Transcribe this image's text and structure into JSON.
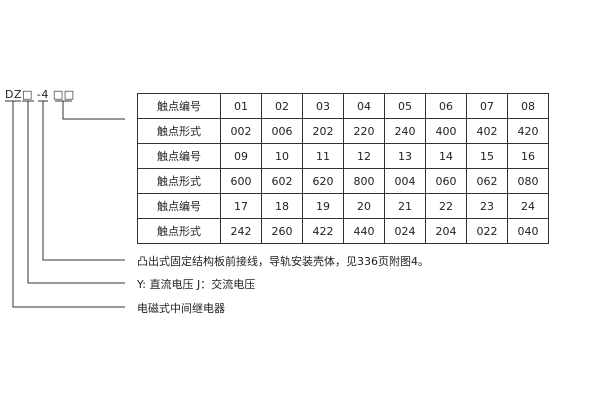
{
  "model_code": "DZ□ -4 □□",
  "table": {
    "rows": [
      {
        "label": "触点编号",
        "values": [
          "01",
          "02",
          "03",
          "04",
          "05",
          "06",
          "07",
          "08"
        ]
      },
      {
        "label": "触点形式",
        "values": [
          "002",
          "006",
          "202",
          "220",
          "240",
          "400",
          "402",
          "420"
        ]
      },
      {
        "label": "触点编号",
        "values": [
          "09",
          "10",
          "11",
          "12",
          "13",
          "14",
          "15",
          "16"
        ]
      },
      {
        "label": "触点形式",
        "values": [
          "600",
          "602",
          "620",
          "800",
          "004",
          "060",
          "062",
          "080"
        ]
      },
      {
        "label": "触点编号",
        "values": [
          "17",
          "18",
          "19",
          "20",
          "21",
          "22",
          "23",
          "24"
        ]
      },
      {
        "label": "触点形式",
        "values": [
          "242",
          "260",
          "422",
          "440",
          "024",
          "204",
          "022",
          "040"
        ]
      }
    ]
  },
  "notes": [
    "凸出式固定结构板前接线，导轨安装壳体，见336页附图4。",
    "Y: 直流电压   J：交流电压",
    "电磁式中间继电器"
  ]
}
